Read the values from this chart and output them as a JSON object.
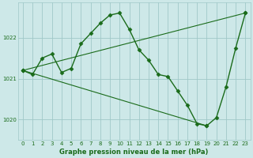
{
  "title": "Graphe pression niveau de la mer (hPa)",
  "background_color": "#cde8e8",
  "plot_bg_color": "#cde8e8",
  "line_color": "#1a6b1a",
  "marker_color": "#1a6b1a",
  "grid_color": "#a0c8c8",
  "xlim": [
    -0.5,
    23.5
  ],
  "ylim": [
    1019.5,
    1022.85
  ],
  "yticks": [
    1020,
    1021,
    1022
  ],
  "xticks": [
    0,
    1,
    2,
    3,
    4,
    5,
    6,
    7,
    8,
    9,
    10,
    11,
    12,
    13,
    14,
    15,
    16,
    17,
    18,
    19,
    20,
    21,
    22,
    23
  ],
  "series_main": {
    "x": [
      0,
      1,
      2,
      3,
      4,
      5,
      6,
      7,
      8,
      9,
      10,
      11,
      12,
      13,
      14,
      15,
      16,
      17,
      18,
      19,
      20,
      21,
      22,
      23
    ],
    "y": [
      1021.2,
      1021.1,
      1021.5,
      1021.6,
      1021.15,
      1021.25,
      1021.85,
      1022.1,
      1022.35,
      1022.55,
      1022.6,
      1022.2,
      1021.7,
      1021.45,
      1021.1,
      1021.05,
      1020.7,
      1020.35,
      1019.9,
      1019.85,
      1020.05,
      1020.8,
      1021.75,
      1022.6
    ]
  },
  "series_line1": {
    "x": [
      0,
      23
    ],
    "y": [
      1021.2,
      1022.6
    ]
  },
  "series_line2": {
    "x": [
      0,
      19
    ],
    "y": [
      1021.2,
      1019.85
    ]
  }
}
